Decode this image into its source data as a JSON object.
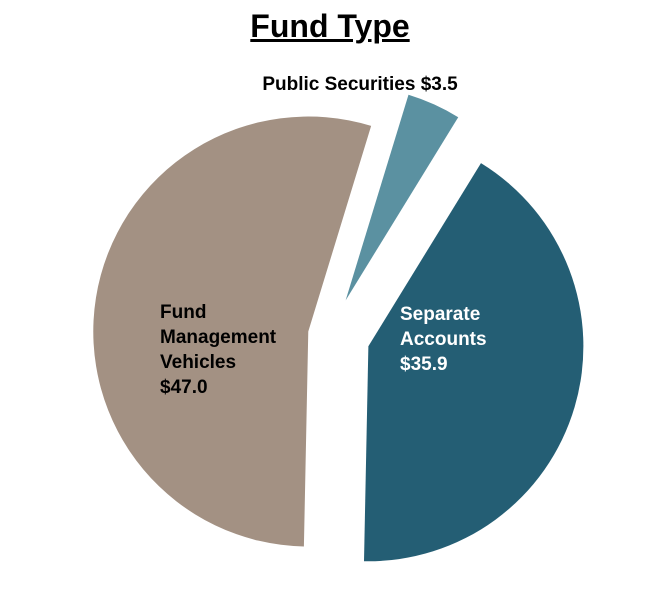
{
  "chart_data": {
    "type": "pie",
    "title": "Fund Type",
    "unit_prefix": "$",
    "slices": [
      {
        "name": "Public Securities",
        "value": 3.5,
        "value_label": "$3.5",
        "color": "#5b91a1",
        "label_lines": [
          "Public Securities $3.5"
        ],
        "label_color": "#000000"
      },
      {
        "name": "Separate Accounts",
        "value": 35.9,
        "value_label": "$35.9",
        "color": "#245e74",
        "label_lines": [
          "Separate",
          "Accounts",
          "$35.9"
        ],
        "label_color": "#ffffff"
      },
      {
        "name": "Fund Management Vehicles",
        "value": 47.0,
        "value_label": "$47.0",
        "color": "#a39183",
        "label_lines": [
          "Fund",
          "Management",
          "Vehicles",
          "$47.0"
        ],
        "label_color": "#000000"
      }
    ],
    "legend": "none"
  }
}
